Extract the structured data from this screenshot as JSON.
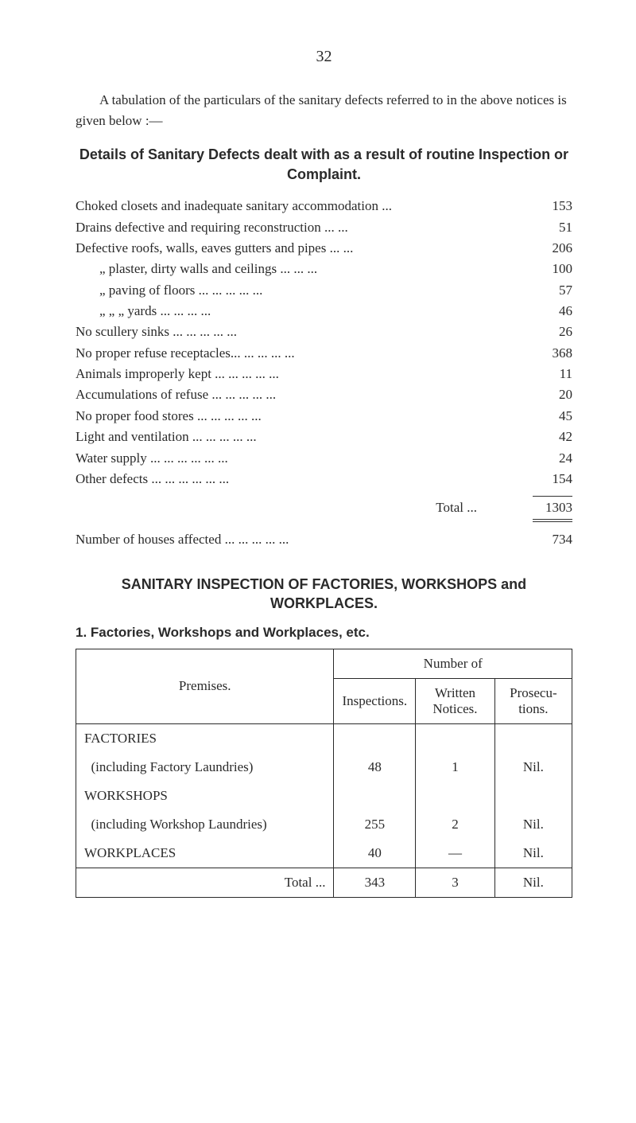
{
  "page_number": "32",
  "intro": "A tabulation of the particulars of the sanitary defects referred to in the above notices is given below :—",
  "heading1": "Details of Sanitary Defects dealt with as a result of routine Inspection or Complaint.",
  "defects": [
    {
      "label": "Choked closets and inadequate sanitary accommodation  ...",
      "value": "153"
    },
    {
      "label": "Drains defective and requiring reconstruction          ...      ...",
      "value": "51"
    },
    {
      "label": "Defective  roofs, walls, eaves gutters and pipes          ...      ...",
      "value": "206"
    },
    {
      "label": "„        plaster, dirty walls and ceilings  ...      ...      ...",
      "value": "100",
      "indent": 1
    },
    {
      "label": "„        paving of floors        ...      ...      ...      ...      ...",
      "value": "57",
      "indent": 1
    },
    {
      "label": "„            „    „  yards                  ...      ...      ...      ...",
      "value": "46",
      "indent": 1
    },
    {
      "label": "No scullery sinks                    ...      ...      ...      ...      ...",
      "value": "26"
    },
    {
      "label": "No proper refuse receptacles...      ...      ...      ...      ...",
      "value": "368"
    },
    {
      "label": "Animals improperly kept          ...      ...      ...      ...      ...",
      "value": "11"
    },
    {
      "label": "Accumulations of refuse          ...      ...      ...      ...      ...",
      "value": "20"
    },
    {
      "label": "No proper food stores            ...      ...      ...      ...      ...",
      "value": "45"
    },
    {
      "label": "Light and ventilation              ...      ...      ...      ...      ...",
      "value": "42"
    },
    {
      "label": "Water supply            ...      ...      ...      ...      ...      ...",
      "value": "24"
    },
    {
      "label": "Other defects              ...      ...      ...      ...      ...      ...",
      "value": "154"
    }
  ],
  "total_label": "Total        ...",
  "total_value": "1303",
  "houses_affected_label": "Number of houses affected    ...      ...      ...      ...      ...",
  "houses_affected_value": "734",
  "heading2": "SANITARY INSPECTION OF FACTORIES, WORKSHOPS and WORKPLACES.",
  "heading3": "1.  Factories, Workshops and Workplaces, etc.",
  "table": {
    "premises_head": "Premises.",
    "number_head": "Number of",
    "col1": "Inspections.",
    "col2": "Written Notices.",
    "col3": "Prosecu- tions.",
    "rows": [
      {
        "label": "FACTORIES",
        "c1": "",
        "c2": "",
        "c3": ""
      },
      {
        "label": "  (including Factory Laundries)",
        "c1": "48",
        "c2": "1",
        "c3": "Nil."
      },
      {
        "label": "WORKSHOPS",
        "c1": "",
        "c2": "",
        "c3": ""
      },
      {
        "label": "  (including Workshop Laundries)",
        "c1": "255",
        "c2": "2",
        "c3": "Nil."
      },
      {
        "label": "WORKPLACES",
        "c1": "40",
        "c2": "—",
        "c3": "Nil."
      }
    ],
    "total_label": "Total      ...",
    "totals": {
      "c1": "343",
      "c2": "3",
      "c3": "Nil."
    }
  },
  "colors": {
    "text": "#2a2a2a",
    "background": "#ffffff",
    "border": "#2a2a2a"
  }
}
